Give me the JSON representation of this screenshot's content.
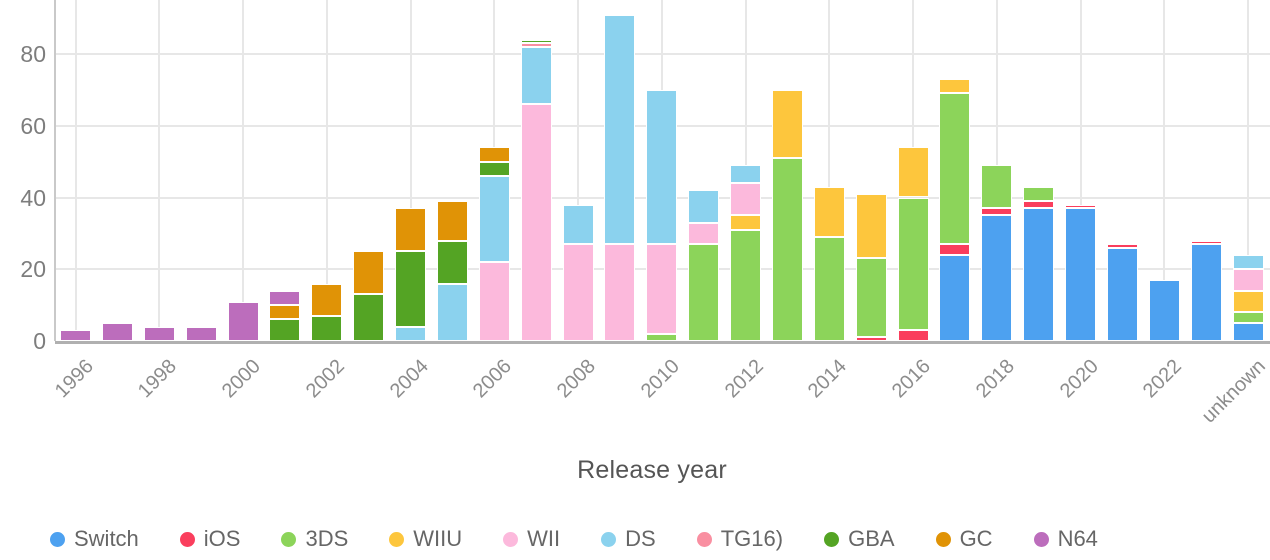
{
  "chart_data": {
    "type": "bar",
    "stacked": true,
    "xlabel": "Release year",
    "ylabel": "",
    "yticks": [
      0,
      20,
      40,
      60,
      80
    ],
    "ylim": [
      0,
      95
    ],
    "grid": true,
    "legend_position": "bottom",
    "categories": [
      "1996",
      "1997",
      "1998",
      "1999",
      "2000",
      "2001",
      "2002",
      "2003",
      "2004",
      "2005",
      "2006",
      "2007",
      "2008",
      "2009",
      "2010",
      "2011",
      "2012",
      "2013",
      "2014",
      "2015",
      "2016",
      "2017",
      "2018",
      "2019",
      "2020",
      "2021",
      "2022",
      "2023",
      "unknown"
    ],
    "x_tick_labels_shown": [
      "1996",
      "1998",
      "2000",
      "2002",
      "2004",
      "2006",
      "2008",
      "2010",
      "2012",
      "2014",
      "2016",
      "2018",
      "2020",
      "2022",
      "unknown"
    ],
    "series": [
      {
        "name": "Switch",
        "color": "#4da1f0",
        "values": [
          0,
          0,
          0,
          0,
          0,
          0,
          0,
          0,
          0,
          0,
          0,
          0,
          0,
          0,
          0,
          0,
          0,
          0,
          0,
          0,
          0,
          24,
          35,
          37,
          37,
          26,
          17,
          27,
          5
        ]
      },
      {
        "name": "iOS",
        "color": "#fa3e5d",
        "values": [
          0,
          0,
          0,
          0,
          0,
          0,
          0,
          0,
          0,
          0,
          0,
          0,
          0,
          0,
          0,
          0,
          0,
          0,
          0,
          1,
          3,
          3,
          2,
          2,
          1,
          1,
          0,
          1,
          0
        ]
      },
      {
        "name": "3DS",
        "color": "#8cd45a",
        "values": [
          0,
          0,
          0,
          0,
          0,
          0,
          0,
          0,
          0,
          0,
          0,
          0,
          0,
          0,
          2,
          27,
          31,
          51,
          29,
          22,
          37,
          42,
          12,
          4,
          0,
          0,
          0,
          0,
          3
        ]
      },
      {
        "name": "WIIU",
        "color": "#fdc63d",
        "values": [
          0,
          0,
          0,
          0,
          0,
          0,
          0,
          0,
          0,
          0,
          0,
          0,
          0,
          0,
          0,
          0,
          4,
          19,
          14,
          18,
          14,
          4,
          0,
          0,
          0,
          0,
          0,
          0,
          6
        ]
      },
      {
        "name": "WII",
        "color": "#fcb9dc",
        "values": [
          0,
          0,
          0,
          0,
          0,
          0,
          0,
          0,
          0,
          0,
          22,
          66,
          27,
          27,
          25,
          6,
          9,
          0,
          0,
          0,
          0,
          0,
          0,
          0,
          0,
          0,
          0,
          0,
          6
        ]
      },
      {
        "name": "DS",
        "color": "#8bd2ee",
        "values": [
          0,
          0,
          0,
          0,
          0,
          0,
          0,
          0,
          4,
          16,
          24,
          16,
          11,
          64,
          43,
          9,
          5,
          0,
          0,
          0,
          0,
          0,
          0,
          0,
          0,
          0,
          0,
          0,
          4
        ]
      },
      {
        "name": "TG16)",
        "color": "#f98fa1",
        "values": [
          0,
          0,
          0,
          0,
          0,
          0,
          0,
          0,
          0,
          0,
          0,
          1,
          0,
          0,
          0,
          0,
          0,
          0,
          0,
          0,
          0,
          0,
          0,
          0,
          0,
          0,
          0,
          0,
          0
        ]
      },
      {
        "name": "GBA",
        "color": "#54a424",
        "values": [
          0,
          0,
          0,
          0,
          0,
          6,
          7,
          13,
          21,
          12,
          4,
          1,
          0,
          0,
          0,
          0,
          0,
          0,
          0,
          0,
          0,
          0,
          0,
          0,
          0,
          0,
          0,
          0,
          0
        ]
      },
      {
        "name": "GC",
        "color": "#e09306",
        "values": [
          0,
          0,
          0,
          0,
          0,
          4,
          9,
          12,
          12,
          11,
          4,
          0,
          0,
          0,
          0,
          0,
          0,
          0,
          0,
          0,
          0,
          0,
          0,
          0,
          0,
          0,
          0,
          0,
          0
        ]
      },
      {
        "name": "N64",
        "color": "#bc6dbc",
        "values": [
          3,
          5,
          4,
          4,
          11,
          4,
          0,
          0,
          0,
          0,
          0,
          0,
          0,
          0,
          0,
          0,
          0,
          0,
          0,
          0,
          0,
          0,
          0,
          0,
          0,
          0,
          0,
          0,
          0
        ]
      }
    ],
    "layout_colors": {
      "grid": "#e7e7e7",
      "baseline": "#b0b0b0",
      "y_axis_line": "#c9c9c9",
      "tick_text": "#8c8c8c",
      "axis_title_text": "#555555",
      "legend_text": "#666666"
    }
  }
}
